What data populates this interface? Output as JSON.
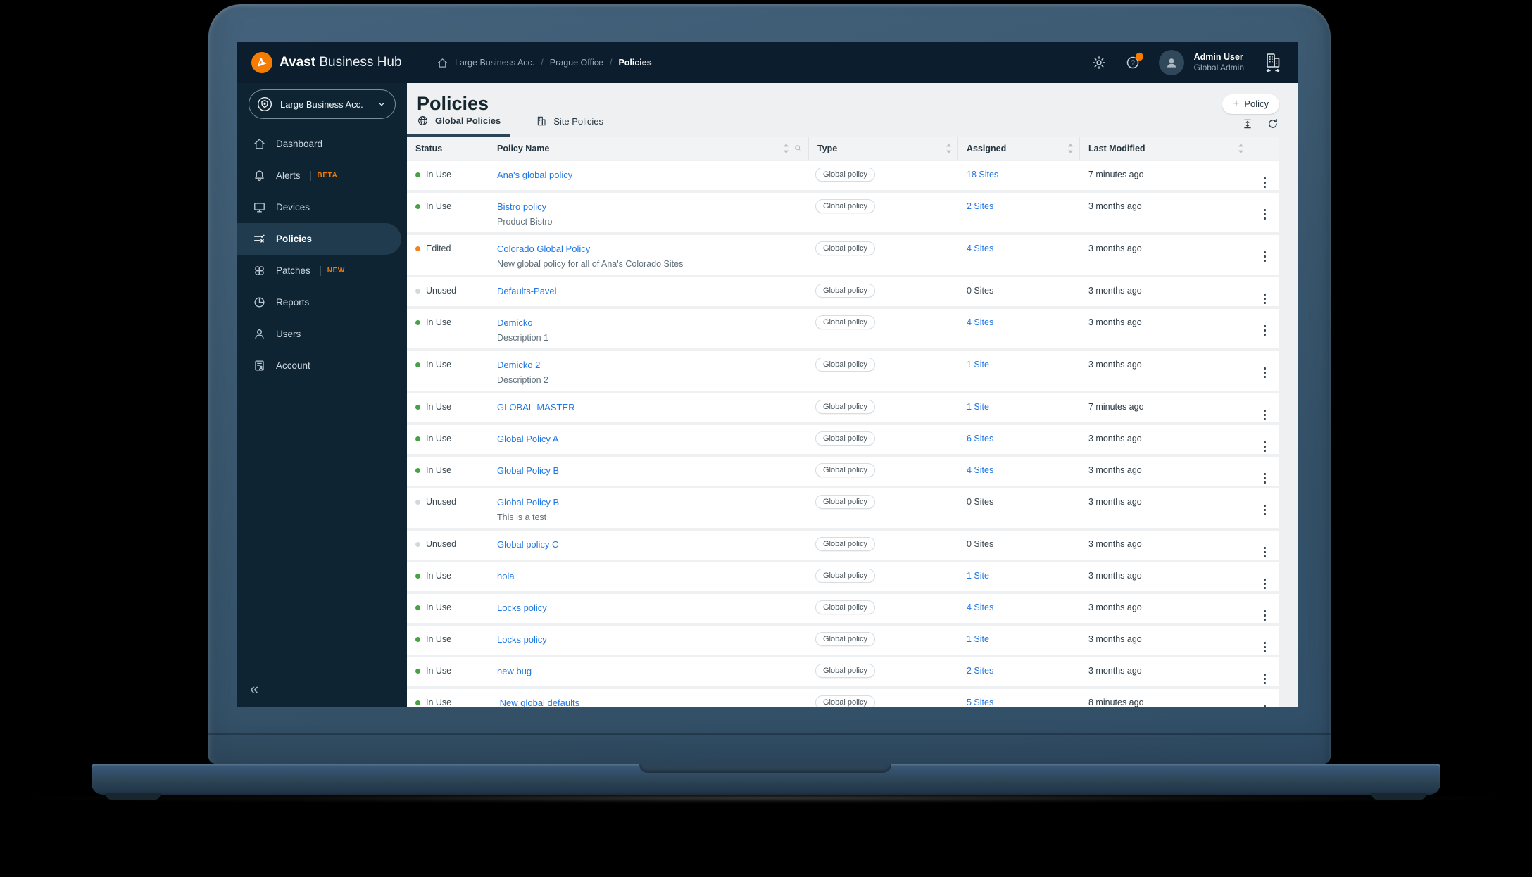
{
  "brand": {
    "bold": "Avast",
    "light": "Business Hub"
  },
  "breadcrumb": {
    "items": [
      "Large Business Acc.",
      "Prague Office",
      "Policies"
    ]
  },
  "topbar": {
    "user_name": "Admin User",
    "user_role": "Global Admin",
    "icon_names": [
      "settings-icon",
      "help-icon",
      "avatar",
      "company-switcher-icon"
    ]
  },
  "icons": {
    "plus": "+",
    "breadcrumb_separator": "/",
    "help_glyph": "?",
    "collapse": "«",
    "chevron_down": "∨"
  },
  "sidebar": {
    "account_selector": "Large Business Acc.",
    "nav": [
      {
        "label": "Dashboard",
        "icon": "home-icon"
      },
      {
        "label": "Alerts",
        "badge": "BETA",
        "icon": "bell-icon"
      },
      {
        "label": "Devices",
        "icon": "monitor-icon"
      },
      {
        "label": "Policies",
        "icon": "policies-icon",
        "active": true
      },
      {
        "label": "Patches",
        "badge": "NEW",
        "icon": "patch-icon"
      },
      {
        "label": "Reports",
        "icon": "pie-chart-icon"
      },
      {
        "label": "Users",
        "icon": "user-icon"
      },
      {
        "label": "Account",
        "icon": "account-icon"
      }
    ]
  },
  "page": {
    "title": "Policies",
    "create_button_label": "Policy"
  },
  "tabs": [
    {
      "label": "Global Policies",
      "icon": "globe-icon",
      "active": true
    },
    {
      "label": "Site Policies",
      "icon": "building-icon",
      "active": false
    }
  ],
  "table": {
    "headers": [
      "Status",
      "Policy Name",
      "Type",
      "Assigned",
      "Last Modified"
    ],
    "rows": [
      {
        "status": "In Use",
        "name": "Ana's global policy",
        "type": "Global policy",
        "assigned": "18 Sites",
        "modified": "7 minutes ago"
      },
      {
        "status": "In Use",
        "name": "Bistro policy",
        "description": "Product Bistro",
        "type": "Global policy",
        "assigned": "2 Sites",
        "modified": "3 months ago"
      },
      {
        "status": "Edited",
        "name": "Colorado Global Policy",
        "description": "New global policy for all of Ana's Colorado Sites",
        "type": "Global policy",
        "assigned": "4 Sites",
        "modified": "3 months ago"
      },
      {
        "status": "Unused",
        "name": "Defaults-Pavel",
        "type": "Global policy",
        "assigned": "0 Sites",
        "modified": "3 months ago"
      },
      {
        "status": "In Use",
        "name": "Demicko",
        "description": "Description 1",
        "type": "Global policy",
        "assigned": "4 Sites",
        "modified": "3 months ago"
      },
      {
        "status": "In Use",
        "name": "Demicko 2",
        "description": "Description 2",
        "type": "Global policy",
        "assigned": "1 Site",
        "modified": "3 months ago"
      },
      {
        "status": "In Use",
        "name": "GLOBAL-MASTER",
        "type": "Global policy",
        "assigned": "1 Site",
        "modified": "7 minutes ago"
      },
      {
        "status": "In Use",
        "name": "Global Policy A",
        "type": "Global policy",
        "assigned": "6 Sites",
        "modified": "3 months ago"
      },
      {
        "status": "In Use",
        "name": "Global Policy B",
        "type": "Global policy",
        "assigned": "4 Sites",
        "modified": "3 months ago"
      },
      {
        "status": "Unused",
        "name": "Global Policy B",
        "description": "This is a test",
        "type": "Global policy",
        "assigned": "0 Sites",
        "modified": "3 months ago"
      },
      {
        "status": "Unused",
        "name": "Global policy C",
        "type": "Global policy",
        "assigned": "0 Sites",
        "modified": "3 months ago"
      },
      {
        "status": "In Use",
        "name": "hola",
        "type": "Global policy",
        "assigned": "1 Site",
        "modified": "3 months ago"
      },
      {
        "status": "In Use",
        "name": "Locks policy",
        "type": "Global policy",
        "assigned": "4 Sites",
        "modified": "3 months ago"
      },
      {
        "status": "In Use",
        "name": "Locks policy",
        "type": "Global policy",
        "assigned": "1 Site",
        "modified": "3 months ago"
      },
      {
        "status": "In Use",
        "name": "new bug",
        "type": "Global policy",
        "assigned": "2 Sites",
        "modified": "3 months ago"
      },
      {
        "status": "In Use",
        "name": " New global defaults",
        "type": "Global policy",
        "assigned": "5 Sites",
        "modified": "8 minutes ago"
      }
    ]
  },
  "colors": {
    "accent_orange": "#F57C00",
    "link_blue": "#2077E4",
    "status_in_use": "#46A246",
    "status_edited": "#F5821F",
    "status_unused": "#D4D8DA",
    "topbar_bg": "#0C1E2D",
    "sidebar_bg": "#0E2433",
    "content_bg": "#EEF0F2"
  }
}
